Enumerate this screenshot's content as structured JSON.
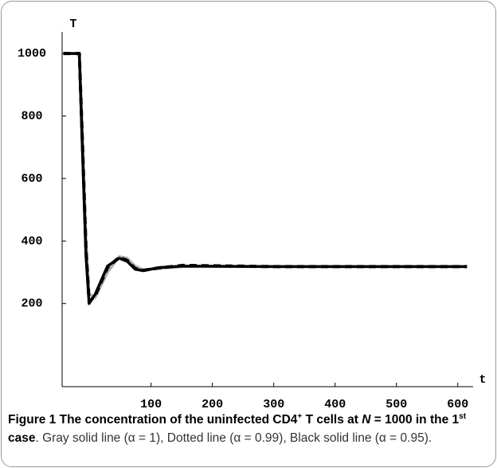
{
  "chart_data": {
    "type": "line",
    "y_label": "T",
    "x_label": "t",
    "x": [
      -43,
      -17,
      -12,
      -6,
      -1,
      9,
      29,
      48,
      61,
      74,
      87,
      113,
      152,
      300,
      450,
      615
    ],
    "series": [
      {
        "color": "#b0b0b0",
        "style": "solid",
        "values": [
          1000,
          1000,
          750,
          400,
          230,
          220,
          300,
          350,
          345,
          320,
          308,
          312,
          318,
          318,
          318,
          318
        ]
      },
      {
        "color": "#000000",
        "style": "solid",
        "values": [
          1000,
          1000,
          700,
          350,
          200,
          230,
          320,
          345,
          335,
          310,
          305,
          315,
          320,
          318,
          318,
          318
        ]
      },
      {
        "color": "#000000",
        "style": "dotted",
        "values": [
          1000,
          1000,
          720,
          370,
          205,
          225,
          315,
          348,
          338,
          312,
          306,
          314,
          322,
          318,
          318,
          318
        ]
      }
    ],
    "xlim": [
      -45,
      625
    ],
    "ylim": [
      -66,
      1069
    ],
    "xticks": [
      100,
      200,
      300,
      400,
      500,
      600
    ],
    "yticks": [
      200,
      400,
      600,
      800,
      1000
    ]
  },
  "caption": {
    "title_a": "Figure 1 The concentration of the uninfected CD4",
    "sup_a": "+",
    "title_b": " T cells at ",
    "symbol": "N",
    "title_c": " = 1000 in the 1",
    "sup_b": "st",
    "title_d": " case",
    "text": ". Gray solid line (α = 1), Dotted line (α = 0.99), Black solid line (α = 0.95)."
  }
}
